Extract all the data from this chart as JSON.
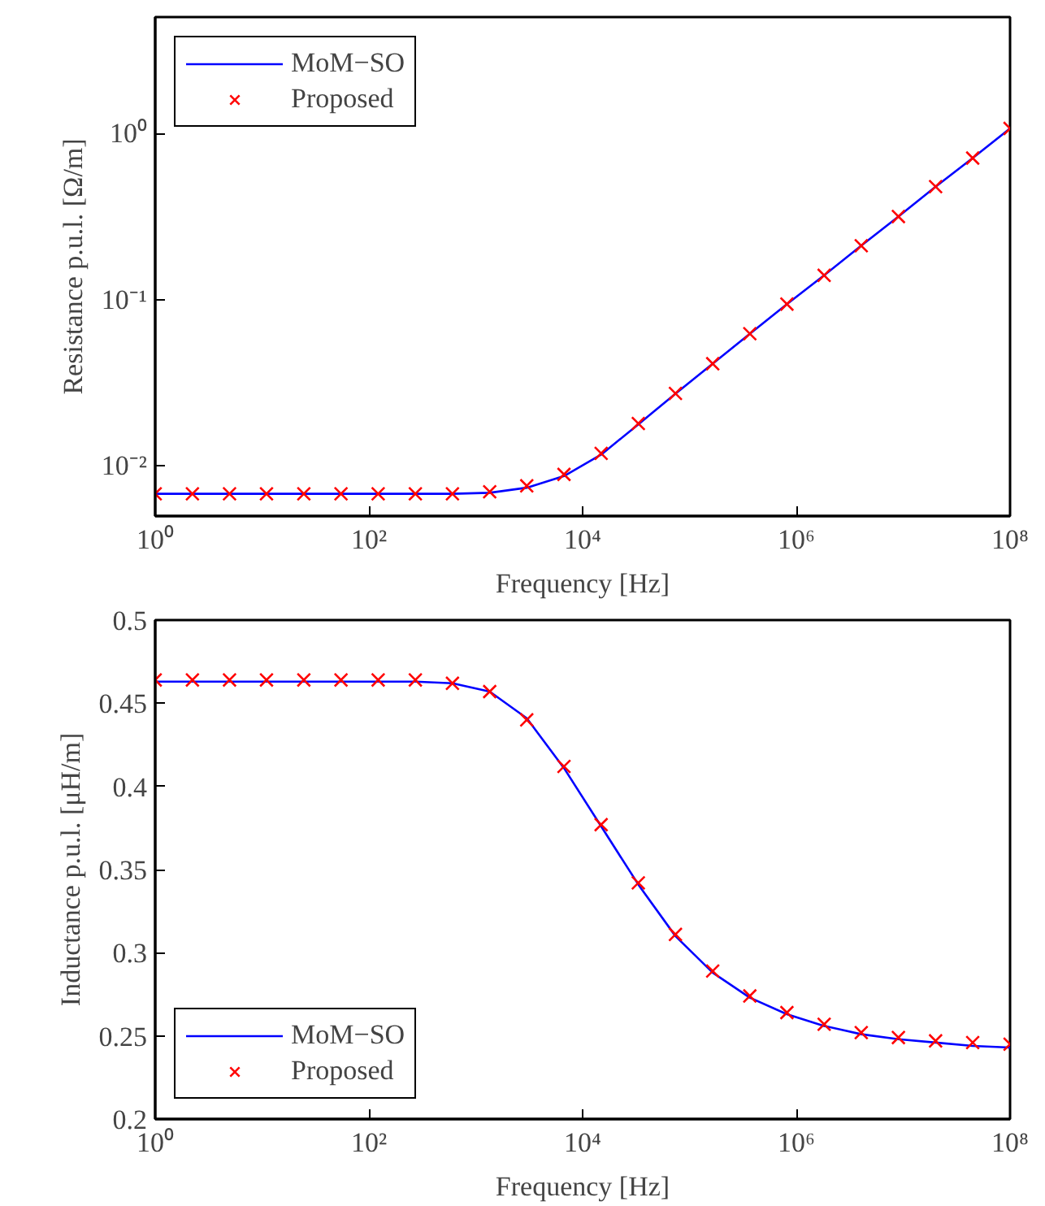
{
  "chart_data": [
    {
      "type": "line",
      "xlabel": "Frequency [Hz]",
      "ylabel": "Resistance p.u.l. [Ω/m]",
      "log": "xy",
      "grid": false,
      "legend": "top left",
      "x": [
        1,
        2.23,
        4.96,
        11.0,
        24.6,
        54.8,
        122,
        272,
        605,
        1350,
        3000,
        6690,
        14900,
        33200,
        73900,
        165000,
        367000,
        816000,
        1820000,
        4050000,
        9020000,
        20100000,
        44700000,
        100000000
      ],
      "xlim": [
        1,
        100000000
      ],
      "xticks": [
        {
          "value": 1,
          "label": "10⁰"
        },
        {
          "value": 100,
          "label": "10²"
        },
        {
          "value": 10000,
          "label": "10⁴"
        },
        {
          "value": 1000000,
          "label": "10⁶"
        },
        {
          "value": 100000000,
          "label": "10⁸"
        }
      ],
      "ylim": [
        0.005,
        5
      ],
      "yticks": [
        {
          "value": 0.01,
          "label": "10⁻²"
        },
        {
          "value": 0.1,
          "label": "10⁻¹"
        },
        {
          "value": 1,
          "label": "10⁰"
        }
      ],
      "series": [
        {
          "name": "MoM−SO",
          "color": "#0000ff",
          "line_style": "solid",
          "values": [
            0.0068,
            0.0068,
            0.0068,
            0.0068,
            0.0068,
            0.0068,
            0.0068,
            0.0068,
            0.0068,
            0.0069,
            0.0074,
            0.0087,
            0.0117,
            0.0178,
            0.0272,
            0.0412,
            0.0624,
            0.094,
            0.14,
            0.211,
            0.316,
            0.478,
            0.71,
            1.07
          ]
        },
        {
          "name": "Proposed",
          "type": "scatter",
          "marker": "cross",
          "color": "#ff0000",
          "values": [
            0.0068,
            0.0068,
            0.0068,
            0.0068,
            0.0068,
            0.0068,
            0.0068,
            0.0068,
            0.0068,
            0.007,
            0.0076,
            0.0089,
            0.0119,
            0.018,
            0.0273,
            0.0412,
            0.0624,
            0.094,
            0.14,
            0.211,
            0.316,
            0.478,
            0.71,
            1.07
          ]
        }
      ]
    },
    {
      "type": "line",
      "xlabel": "Frequency [Hz]",
      "ylabel": "Inductance p.u.l. [μH/m]",
      "log": "x",
      "grid": false,
      "legend": "bottom left",
      "x": [
        1,
        2.23,
        4.96,
        11.0,
        24.6,
        54.8,
        122,
        272,
        605,
        1350,
        3000,
        6690,
        14900,
        33200,
        73900,
        165000,
        367000,
        816000,
        1820000,
        4050000,
        9020000,
        20100000,
        44700000,
        100000000
      ],
      "xlim": [
        1,
        100000000
      ],
      "xticks": [
        {
          "value": 1,
          "label": "10⁰"
        },
        {
          "value": 100,
          "label": "10²"
        },
        {
          "value": 10000,
          "label": "10⁴"
        },
        {
          "value": 1000000,
          "label": "10⁶"
        },
        {
          "value": 100000000,
          "label": "10⁸"
        }
      ],
      "ylim": [
        0.2,
        0.5
      ],
      "yticks": [
        0.2,
        0.25,
        0.3,
        0.35,
        0.4,
        0.45,
        0.5
      ],
      "series": [
        {
          "name": "MoM−SO",
          "color": "#0000ff",
          "line_style": "solid",
          "values": [
            0.463,
            0.463,
            0.463,
            0.463,
            0.463,
            0.463,
            0.463,
            0.463,
            0.462,
            0.457,
            0.441,
            0.411,
            0.376,
            0.341,
            0.31,
            0.288,
            0.273,
            0.263,
            0.256,
            0.251,
            0.248,
            0.246,
            0.244,
            0.243
          ]
        },
        {
          "name": "Proposed",
          "type": "scatter",
          "marker": "cross",
          "color": "#ff0000",
          "values": [
            0.464,
            0.464,
            0.464,
            0.464,
            0.464,
            0.464,
            0.464,
            0.464,
            0.462,
            0.457,
            0.44,
            0.412,
            0.377,
            0.342,
            0.311,
            0.289,
            0.274,
            0.264,
            0.257,
            0.252,
            0.249,
            0.247,
            0.246,
            0.245
          ]
        }
      ]
    }
  ]
}
